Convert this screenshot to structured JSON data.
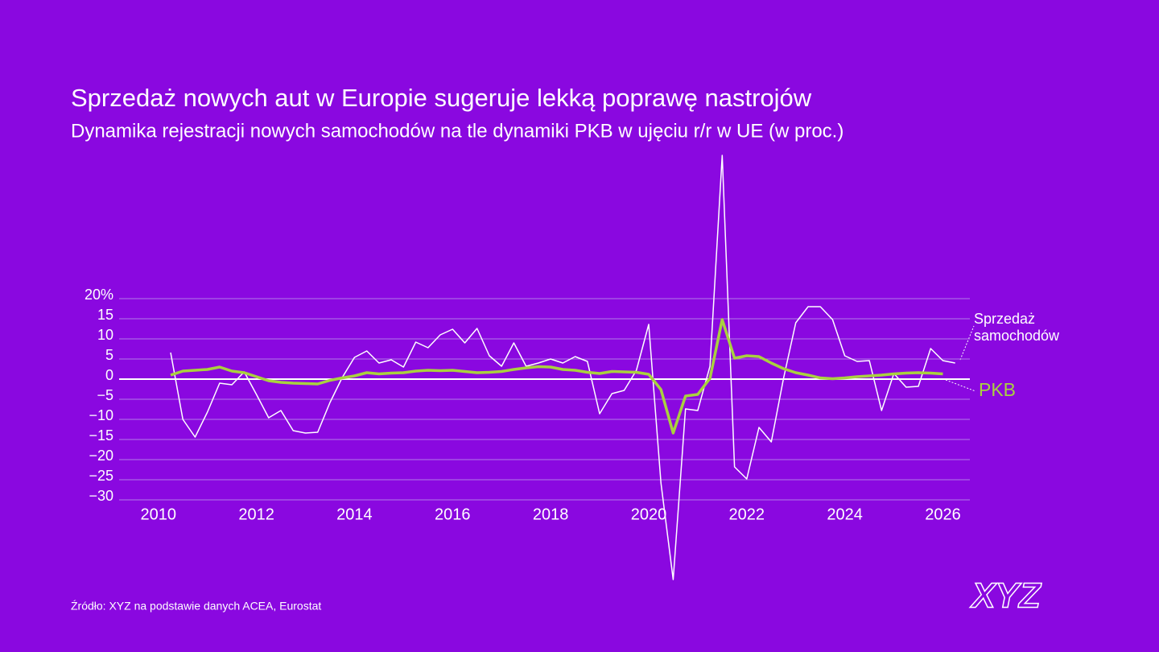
{
  "chart_data": {
    "type": "line",
    "title": "Sprzedaż nowych aut w Europie sugeruje lekką poprawę nastrojów",
    "subtitle": "Dynamika rejestracji nowych samochodów na tle dynamiki PKB w ujęciu r/r w UE (w proc.)",
    "source": "Źródło: XYZ na podstawie danych ACEA, Eurostat",
    "logo": "XYZ",
    "x": [
      2010.25,
      2010.5,
      2010.75,
      2011,
      2011.25,
      2011.5,
      2011.75,
      2012,
      2012.25,
      2012.5,
      2012.75,
      2013,
      2013.25,
      2013.5,
      2013.75,
      2014,
      2014.25,
      2014.5,
      2014.75,
      2015,
      2015.25,
      2015.5,
      2015.75,
      2016,
      2016.25,
      2016.5,
      2016.75,
      2017,
      2017.25,
      2017.5,
      2017.75,
      2018,
      2018.25,
      2018.5,
      2018.75,
      2019,
      2019.25,
      2019.5,
      2019.75,
      2020,
      2020.25,
      2020.5,
      2020.75,
      2021,
      2021.25,
      2021.5,
      2021.75,
      2022,
      2022.25,
      2022.5,
      2022.75,
      2023,
      2023.25,
      2023.5,
      2023.75,
      2024,
      2024.25,
      2024.5,
      2024.75,
      2025,
      2025.25,
      2025.5,
      2025.75,
      2026,
      2026.25
    ],
    "series": [
      {
        "name": "Sprzedaż samochodów",
        "color": "#ffffff",
        "width": 1.5,
        "values": [
          6.6,
          -10,
          -14.4,
          -8.2,
          -1,
          -1.4,
          1.8,
          -3.8,
          -9.6,
          -7.8,
          -12.8,
          -13.4,
          -13.2,
          -5.8,
          0.4,
          5.4,
          7,
          4,
          4.8,
          3,
          9.2,
          7.8,
          11,
          12.4,
          9,
          12.6,
          5.8,
          3.2,
          9,
          3.2,
          4,
          5,
          4,
          5.6,
          4.4,
          -8.6,
          -3.6,
          -2.8,
          2.2,
          13.6,
          -25.8,
          -49.8,
          -7.4,
          -7.8,
          3.2,
          55.6,
          -21.8,
          -24.8,
          -12,
          -15.6,
          0.2,
          14,
          18,
          18,
          14.8,
          5.8,
          4.4,
          4.6,
          -7.8,
          1.4,
          -2,
          -1.8,
          7.6,
          4.6,
          4
        ]
      },
      {
        "name": "PKB",
        "color": "#a9d13f",
        "width": 3.5,
        "values": [
          1,
          2,
          2.2,
          2.4,
          3,
          2,
          1.6,
          0.6,
          -0.4,
          -0.8,
          -1,
          -1.1,
          -1.2,
          -0.3,
          0.3,
          0.8,
          1.6,
          1.3,
          1.5,
          1.6,
          2,
          2.2,
          2.1,
          2.2,
          1.9,
          1.6,
          1.7,
          1.9,
          2.4,
          2.8,
          3.1,
          3,
          2.4,
          2.2,
          1.7,
          1.4,
          1.9,
          1.8,
          1.7,
          1.2,
          -2.6,
          -13.4,
          -4.2,
          -3.8,
          0.2,
          14.8,
          5.2,
          5.8,
          5.6,
          4,
          2.6,
          1.6,
          1,
          0.3,
          0.1,
          0.3,
          0.6,
          0.8,
          1,
          1.3,
          1.5,
          1.6,
          1.5,
          1.3,
          null
        ]
      }
    ],
    "xlim": [
      2009.2,
      2026.55
    ],
    "xticks": [
      2010,
      2012,
      2014,
      2016,
      2018,
      2020,
      2022,
      2024,
      2026
    ],
    "ylim": [
      -30,
      20
    ],
    "yticks": [
      {
        "value": 20,
        "label": "20%"
      },
      15,
      10,
      5,
      0,
      {
        "value": -5,
        "label": "−5"
      },
      {
        "value": -10,
        "label": "−10"
      },
      {
        "value": -15,
        "label": "−15"
      },
      {
        "value": -20,
        "label": "−20"
      },
      {
        "value": -25,
        "label": "−25"
      },
      {
        "value": -30,
        "label": "−30"
      }
    ],
    "grid": true
  }
}
